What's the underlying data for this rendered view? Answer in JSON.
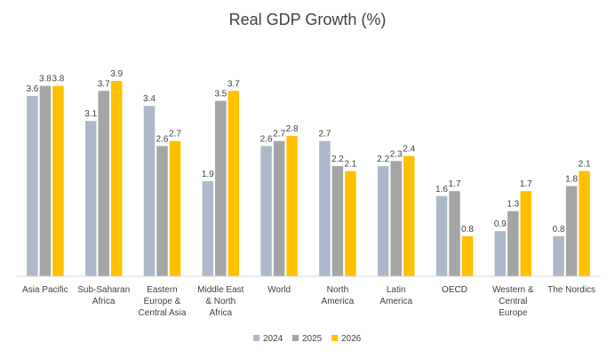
{
  "chart_data": {
    "type": "bar",
    "title": "Real GDP Growth (%)",
    "categories": [
      [
        "Asia Pacific"
      ],
      [
        "Sub-Saharan",
        "Africa"
      ],
      [
        "Eastern",
        "Europe &",
        "Central Asia"
      ],
      [
        "Middle East",
        "& North",
        "Africa"
      ],
      [
        "World"
      ],
      [
        "North",
        "America"
      ],
      [
        "Latin",
        "America"
      ],
      [
        "OECD"
      ],
      [
        "Western &",
        "Central",
        "Europe"
      ],
      [
        "The Nordics"
      ]
    ],
    "series": [
      {
        "name": "2024",
        "color": "#adb9ca",
        "values": [
          3.6,
          3.1,
          3.4,
          1.9,
          2.6,
          2.7,
          2.2,
          1.6,
          0.9,
          0.8
        ]
      },
      {
        "name": "2025",
        "color": "#a5a5a5",
        "values": [
          3.8,
          3.7,
          2.6,
          3.5,
          2.7,
          2.2,
          2.3,
          1.7,
          1.3,
          1.8
        ]
      },
      {
        "name": "2026",
        "color": "#ffc000",
        "values": [
          3.8,
          3.9,
          2.7,
          3.7,
          2.8,
          2.1,
          2.4,
          0.8,
          1.7,
          2.1
        ]
      }
    ],
    "ylim": [
      0,
      4.3
    ],
    "legend": "bottom",
    "grid": false,
    "data_labels": true,
    "xlabel": "",
    "ylabel": ""
  }
}
